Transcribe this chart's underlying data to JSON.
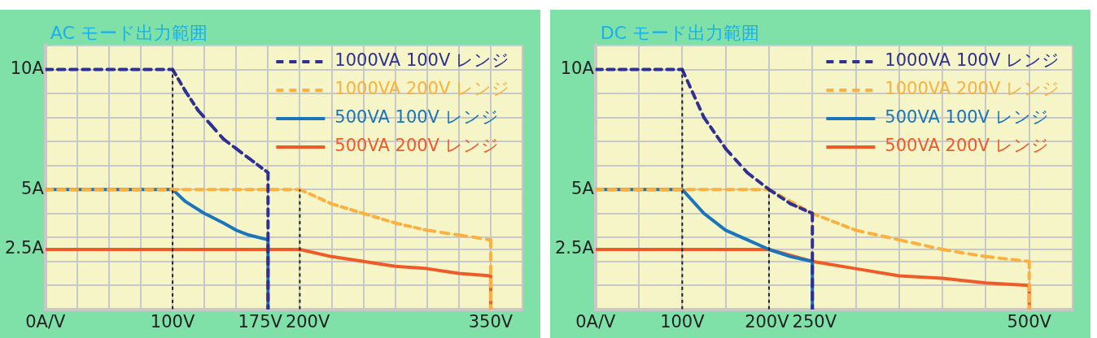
{
  "chart_data": [
    {
      "type": "line",
      "title": "AC モード出力範囲",
      "grid": true,
      "legend": "top right",
      "xlim": [
        0,
        375
      ],
      "xticks": [
        {
          "value": 0,
          "label": "0A/V"
        },
        {
          "value": 25,
          "label": null
        },
        {
          "value": 50,
          "label": null
        },
        {
          "value": 75,
          "label": null
        },
        {
          "value": 100,
          "label": "100V"
        },
        {
          "value": 125,
          "label": null
        },
        {
          "value": 150,
          "label": null
        },
        {
          "value": 175,
          "label": "175V"
        },
        {
          "value": 200,
          "label": "200V"
        },
        {
          "value": 225,
          "label": null
        },
        {
          "value": 250,
          "label": null
        },
        {
          "value": 275,
          "label": null
        },
        {
          "value": 300,
          "label": null
        },
        {
          "value": 325,
          "label": null
        },
        {
          "value": 350,
          "label": "350V"
        },
        {
          "value": 375,
          "label": null
        }
      ],
      "ylim": [
        0,
        11
      ],
      "yticks": [
        {
          "value": 0,
          "label": null
        },
        {
          "value": 1,
          "label": null
        },
        {
          "value": 2,
          "label": null
        },
        {
          "value": 2.5,
          "label": "2.5A"
        },
        {
          "value": 3,
          "label": null
        },
        {
          "value": 4,
          "label": null
        },
        {
          "value": 5,
          "label": "5A"
        },
        {
          "value": 6,
          "label": null
        },
        {
          "value": 7,
          "label": null
        },
        {
          "value": 8,
          "label": null
        },
        {
          "value": 9,
          "label": null
        },
        {
          "value": 10,
          "label": "10A"
        },
        {
          "value": 11,
          "label": null
        }
      ],
      "series": [
        {
          "color": "#222222",
          "line_style": "dotted",
          "x": [
            100,
            100
          ],
          "values": [
            0,
            10
          ]
        },
        {
          "color": "#222222",
          "line_style": "dotted",
          "x": [
            200,
            200
          ],
          "values": [
            0,
            5
          ]
        },
        {
          "name": "1000VA 100V レンジ",
          "color": "#2e3192",
          "line_style": "dashed",
          "x": [
            0,
            100,
            110,
            120,
            130,
            140,
            150,
            160,
            175,
            175
          ],
          "values": [
            10,
            10,
            9.1,
            8.3,
            7.7,
            7.1,
            6.7,
            6.3,
            5.7,
            0
          ]
        },
        {
          "name": "1000VA 200V レンジ",
          "color": "#fbb040",
          "line_style": "dashed",
          "x": [
            0,
            200,
            225,
            250,
            275,
            300,
            325,
            350,
            350
          ],
          "values": [
            5,
            5,
            4.4,
            4,
            3.6,
            3.3,
            3.1,
            2.9,
            0
          ]
        },
        {
          "name": "500VA 100V レンジ",
          "color": "#1b75bb",
          "line_style": "solid",
          "x": [
            0,
            100,
            110,
            125,
            140,
            150,
            160,
            175,
            175
          ],
          "values": [
            5,
            5,
            4.5,
            4,
            3.6,
            3.3,
            3.1,
            2.9,
            0
          ]
        },
        {
          "name": "500VA 200V レンジ",
          "color": "#f05a28",
          "line_style": "solid",
          "x": [
            0,
            200,
            225,
            250,
            275,
            300,
            325,
            350,
            350
          ],
          "values": [
            2.5,
            2.5,
            2.2,
            2,
            1.8,
            1.7,
            1.5,
            1.4,
            0
          ]
        }
      ]
    },
    {
      "type": "line",
      "title": "DC モード出力範囲",
      "grid": true,
      "legend": "top right",
      "xlim": [
        0,
        550
      ],
      "xticks": [
        {
          "value": 0,
          "label": "0A/V"
        },
        {
          "value": 50,
          "label": null
        },
        {
          "value": 100,
          "label": "100V"
        },
        {
          "value": 150,
          "label": null
        },
        {
          "value": 200,
          "label": "200V"
        },
        {
          "value": 250,
          "label": "250V"
        },
        {
          "value": 300,
          "label": null
        },
        {
          "value": 350,
          "label": null
        },
        {
          "value": 400,
          "label": null
        },
        {
          "value": 450,
          "label": null
        },
        {
          "value": 500,
          "label": "500V"
        },
        {
          "value": 550,
          "label": null
        }
      ],
      "ylim": [
        0,
        11
      ],
      "yticks": [
        {
          "value": 0,
          "label": null
        },
        {
          "value": 1,
          "label": null
        },
        {
          "value": 2,
          "label": null
        },
        {
          "value": 2.5,
          "label": "2.5A"
        },
        {
          "value": 3,
          "label": null
        },
        {
          "value": 4,
          "label": null
        },
        {
          "value": 5,
          "label": "5A"
        },
        {
          "value": 6,
          "label": null
        },
        {
          "value": 7,
          "label": null
        },
        {
          "value": 8,
          "label": null
        },
        {
          "value": 9,
          "label": null
        },
        {
          "value": 10,
          "label": "10A"
        },
        {
          "value": 11,
          "label": null
        }
      ],
      "series": [
        {
          "color": "#222222",
          "line_style": "dotted",
          "x": [
            100,
            100
          ],
          "values": [
            0,
            10
          ]
        },
        {
          "color": "#222222",
          "line_style": "dotted",
          "x": [
            200,
            200
          ],
          "values": [
            0,
            5
          ]
        },
        {
          "name": "1000VA 100V レンジ",
          "color": "#2e3192",
          "line_style": "dashed",
          "x": [
            0,
            100,
            125,
            150,
            175,
            200,
            225,
            250,
            250
          ],
          "values": [
            10,
            10,
            8,
            6.7,
            5.7,
            5,
            4.4,
            4,
            0
          ]
        },
        {
          "name": "1000VA 200V レンジ",
          "color": "#fbb040",
          "line_style": "dashed",
          "x": [
            0,
            200,
            250,
            300,
            350,
            400,
            450,
            500,
            500
          ],
          "values": [
            5,
            5,
            4,
            3.3,
            2.9,
            2.5,
            2.2,
            2,
            0
          ]
        },
        {
          "name": "500VA 100V レンジ",
          "color": "#1b75bb",
          "line_style": "solid",
          "x": [
            0,
            100,
            125,
            150,
            175,
            200,
            225,
            250,
            250
          ],
          "values": [
            5,
            5,
            4,
            3.3,
            2.9,
            2.5,
            2.2,
            2,
            0
          ]
        },
        {
          "name": "500VA 200V レンジ",
          "color": "#f05a28",
          "line_style": "solid",
          "x": [
            0,
            200,
            250,
            300,
            350,
            400,
            450,
            500,
            500
          ],
          "values": [
            2.5,
            2.5,
            2,
            1.7,
            1.4,
            1.3,
            1.1,
            1,
            0
          ]
        }
      ]
    }
  ]
}
